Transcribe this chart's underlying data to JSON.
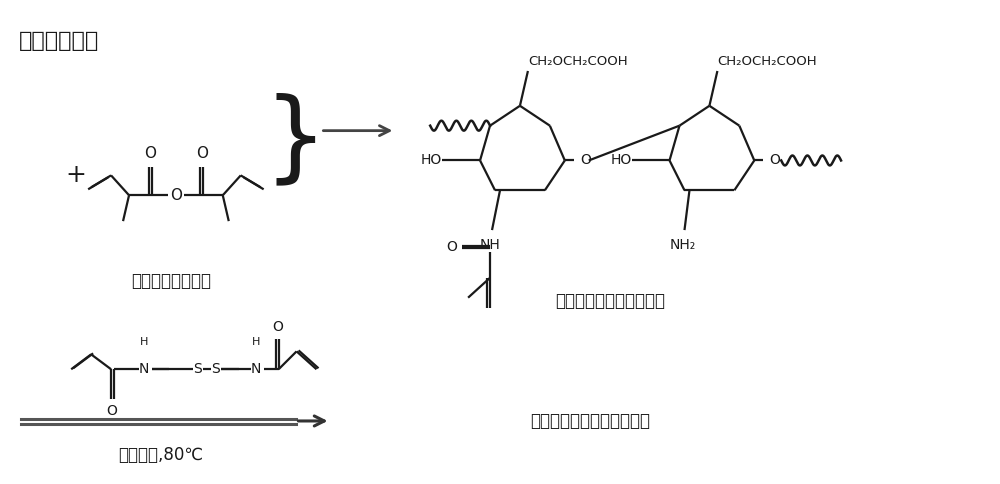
{
  "bg_color": "#ffffff",
  "line_color": "#1a1a1a",
  "label_top_left": "羚甲基壳聚糖",
  "label_methacrylate": "（甲基丙烯酸酉）",
  "label_product": "甲基丙烯酯羚甲基壳聚糖",
  "label_nanogel": "改性羚甲基壳聚糖纳米凝胶",
  "label_conditions": "过硒酸钟,80℃",
  "plus_sign": "+"
}
